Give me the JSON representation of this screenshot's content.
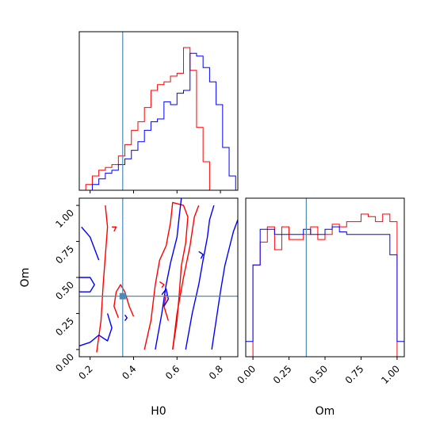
{
  "colors": {
    "red": "#ff0000",
    "blue": "#0000ff",
    "truth": "#4c8ab8",
    "frame": "#000000"
  },
  "chart_data": {
    "type": "corner",
    "parameters": [
      "H0",
      "Om"
    ],
    "truths": {
      "H0": 0.35,
      "Om": 0.37
    },
    "axes": {
      "H0": {
        "range": [
          0.15,
          0.88
        ],
        "ticks": [
          0.2,
          0.4,
          0.6,
          0.8
        ],
        "tick_labels": [
          "0.2",
          "0.4",
          "0.6",
          "0.8"
        ]
      },
      "Om": {
        "range": [
          -0.05,
          1.05
        ],
        "ticks": [
          0.0,
          0.25,
          0.5,
          0.75,
          1.0
        ],
        "tick_labels": [
          "0.00",
          "0.25",
          "0.50",
          "0.75",
          "1.00"
        ]
      }
    },
    "xlabels": {
      "bottom_left": "H0",
      "bottom_right": "Om"
    },
    "ylabel_left": "Om",
    "hist_H0": {
      "bin_edges": [
        0.15,
        0.18,
        0.21,
        0.24,
        0.27,
        0.3,
        0.33,
        0.36,
        0.39,
        0.42,
        0.45,
        0.48,
        0.51,
        0.54,
        0.57,
        0.6,
        0.63,
        0.66,
        0.69,
        0.72,
        0.75,
        0.78,
        0.81,
        0.84,
        0.87
      ],
      "series": [
        {
          "color": "red",
          "values": [
            0,
            2,
            5,
            7,
            8,
            9,
            12,
            16,
            21,
            24,
            29,
            35,
            37,
            38,
            40,
            41,
            50,
            42,
            22,
            10,
            0,
            0,
            0,
            0
          ]
        },
        {
          "color": "blue",
          "values": [
            0,
            0,
            2,
            4,
            6,
            7,
            9,
            11,
            14,
            17,
            21,
            24,
            25,
            31,
            30,
            34,
            35,
            48,
            47,
            43,
            38,
            30,
            15,
            5
          ]
        }
      ]
    },
    "hist_Om": {
      "bin_edges": [
        -0.05,
        0.0,
        0.05,
        0.1,
        0.15,
        0.2,
        0.25,
        0.3,
        0.35,
        0.4,
        0.45,
        0.5,
        0.55,
        0.6,
        0.65,
        0.7,
        0.75,
        0.8,
        0.85,
        0.9,
        0.95,
        1.0,
        1.05
      ],
      "series": [
        {
          "color": "red",
          "values": [
            0,
            36,
            45,
            51,
            42,
            51,
            46,
            46,
            48,
            51,
            46,
            48,
            52,
            51,
            53,
            53,
            56,
            55,
            53,
            56,
            53,
            0
          ]
        },
        {
          "color": "blue",
          "values": [
            6,
            36,
            50,
            50,
            48,
            48,
            48,
            48,
            50,
            48,
            48,
            50,
            51,
            49,
            48,
            48,
            48,
            48,
            48,
            48,
            40,
            6
          ]
        }
      ]
    },
    "contours": [
      {
        "color": "red",
        "points": [
          [
            0.4,
            0.23
          ],
          [
            0.38,
            0.3
          ],
          [
            0.36,
            0.4
          ],
          [
            0.34,
            0.45
          ],
          [
            0.32,
            0.4
          ],
          [
            0.31,
            0.3
          ],
          [
            0.33,
            0.22
          ]
        ]
      },
      {
        "color": "red",
        "points": [
          [
            0.45,
            0.0
          ],
          [
            0.48,
            0.2
          ],
          [
            0.5,
            0.45
          ],
          [
            0.52,
            0.62
          ],
          [
            0.55,
            0.72
          ],
          [
            0.57,
            0.88
          ],
          [
            0.58,
            1.02
          ],
          [
            0.63,
            1.0
          ],
          [
            0.65,
            0.92
          ],
          [
            0.64,
            0.74
          ],
          [
            0.62,
            0.58
          ],
          [
            0.61,
            0.38
          ],
          [
            0.6,
            0.2
          ],
          [
            0.58,
            0.0
          ]
        ]
      },
      {
        "color": "red",
        "points": [
          [
            0.58,
            0.0
          ],
          [
            0.6,
            0.25
          ],
          [
            0.63,
            0.5
          ],
          [
            0.66,
            0.72
          ],
          [
            0.68,
            0.92
          ],
          [
            0.7,
            1.0
          ]
        ]
      },
      {
        "color": "red",
        "points": [
          [
            0.23,
            -0.02
          ],
          [
            0.25,
            0.2
          ],
          [
            0.26,
            0.45
          ],
          [
            0.27,
            0.65
          ],
          [
            0.28,
            0.85
          ],
          [
            0.27,
            1.0
          ]
        ]
      },
      {
        "color": "red",
        "points": [
          [
            0.3,
            0.85
          ],
          [
            0.32,
            0.85
          ],
          [
            0.31,
            0.82
          ]
        ]
      },
      {
        "color": "red",
        "points": [
          [
            0.52,
            0.47
          ],
          [
            0.54,
            0.45
          ],
          [
            0.53,
            0.43
          ]
        ]
      },
      {
        "color": "red",
        "points": [
          [
            0.55,
            0.38
          ],
          [
            0.54,
            0.3
          ],
          [
            0.56,
            0.2
          ]
        ]
      },
      {
        "color": "blue",
        "points": [
          [
            0.15,
            0.5
          ],
          [
            0.2,
            0.5
          ],
          [
            0.22,
            0.45
          ],
          [
            0.2,
            0.4
          ],
          [
            0.15,
            0.4
          ]
        ]
      },
      {
        "color": "blue",
        "points": [
          [
            0.14,
            0.02
          ],
          [
            0.2,
            0.05
          ],
          [
            0.24,
            0.1
          ],
          [
            0.28,
            0.06
          ],
          [
            0.3,
            0.15
          ],
          [
            0.28,
            0.25
          ]
        ]
      },
      {
        "color": "blue",
        "points": [
          [
            0.16,
            0.85
          ],
          [
            0.2,
            0.78
          ],
          [
            0.22,
            0.7
          ],
          [
            0.24,
            0.62
          ]
        ]
      },
      {
        "color": "blue",
        "points": [
          [
            0.5,
            0.0
          ],
          [
            0.53,
            0.25
          ],
          [
            0.55,
            0.45
          ],
          [
            0.57,
            0.6
          ],
          [
            0.6,
            0.78
          ],
          [
            0.61,
            0.92
          ],
          [
            0.62,
            1.05
          ]
        ]
      },
      {
        "color": "blue",
        "points": [
          [
            0.64,
            0.0
          ],
          [
            0.67,
            0.25
          ],
          [
            0.7,
            0.45
          ],
          [
            0.72,
            0.62
          ],
          [
            0.74,
            0.78
          ],
          [
            0.75,
            0.9
          ],
          [
            0.77,
            1.0
          ]
        ]
      },
      {
        "color": "blue",
        "points": [
          [
            0.76,
            0.0
          ],
          [
            0.78,
            0.2
          ],
          [
            0.8,
            0.4
          ],
          [
            0.82,
            0.58
          ],
          [
            0.84,
            0.7
          ],
          [
            0.86,
            0.82
          ],
          [
            0.88,
            0.9
          ]
        ]
      },
      {
        "color": "blue",
        "points": [
          [
            0.7,
            0.68
          ],
          [
            0.72,
            0.66
          ],
          [
            0.71,
            0.63
          ]
        ]
      },
      {
        "color": "blue",
        "points": [
          [
            0.53,
            0.38
          ],
          [
            0.55,
            0.42
          ],
          [
            0.56,
            0.35
          ],
          [
            0.54,
            0.3
          ]
        ]
      },
      {
        "color": "blue",
        "points": [
          [
            0.36,
            0.24
          ],
          [
            0.37,
            0.22
          ],
          [
            0.36,
            0.2
          ]
        ]
      }
    ]
  }
}
